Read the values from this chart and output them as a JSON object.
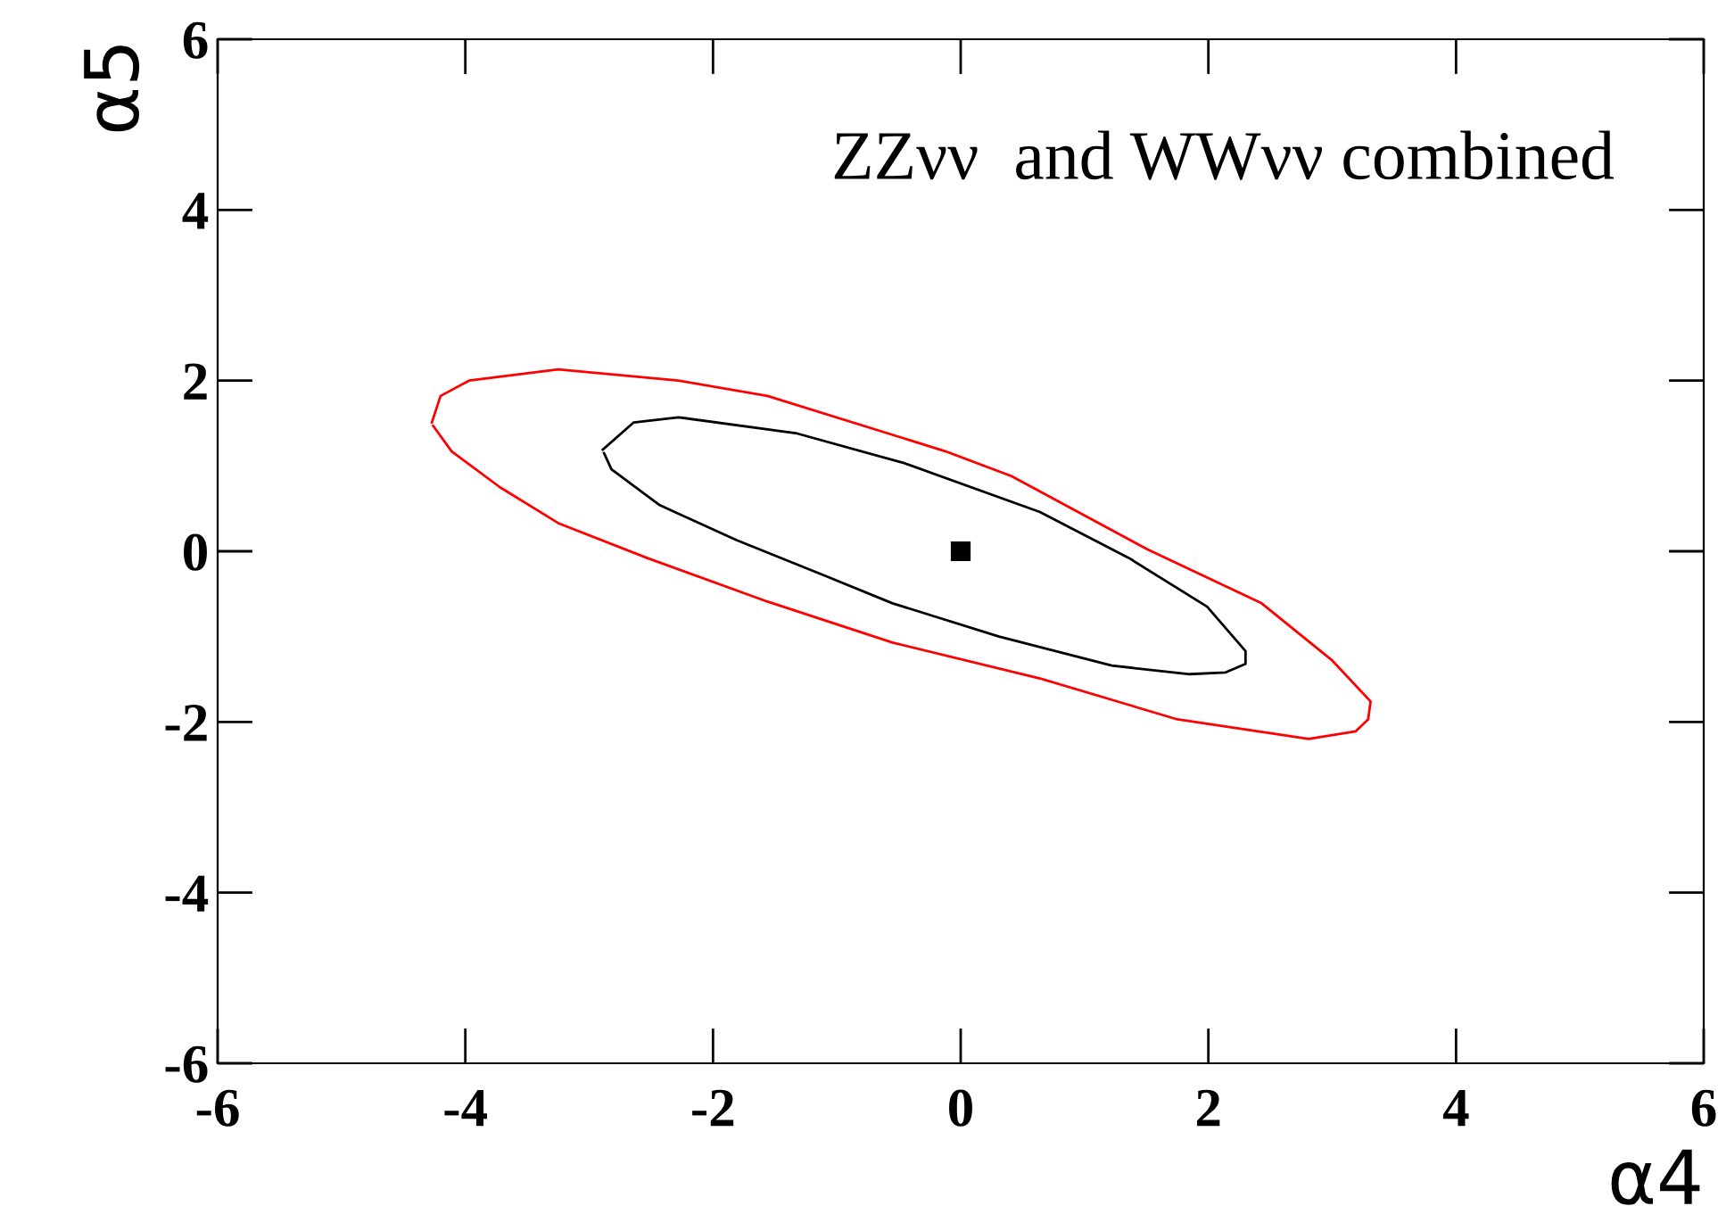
{
  "chart_data": {
    "type": "line",
    "xlabel": "α4",
    "ylabel": "α5",
    "annotations": [
      "ZZνν  and WWνν combined"
    ],
    "xlim": [
      -6,
      6
    ],
    "ylim": [
      -6,
      6
    ],
    "xticks": [
      -6,
      -4,
      -2,
      0,
      2,
      4,
      6
    ],
    "yticks": [
      -6,
      -4,
      -2,
      0,
      2,
      4,
      6
    ],
    "grid": false,
    "legend": false,
    "series": [
      {
        "color": "#ff0000",
        "x": [
          -4.27,
          -4.2,
          -3.97,
          -3.25,
          -2.28,
          -1.56,
          -0.12,
          0.41,
          1.51,
          2.43,
          3.0,
          3.31,
          3.29,
          3.19,
          2.81,
          1.75,
          0.64,
          -0.55,
          -1.56,
          -2.53,
          -3.25,
          -3.72,
          -4.11,
          -4.26
        ],
        "values": [
          1.51,
          1.82,
          2.0,
          2.13,
          2.0,
          1.82,
          1.17,
          0.88,
          0.02,
          -0.61,
          -1.28,
          -1.76,
          -1.97,
          -2.11,
          -2.2,
          -1.97,
          -1.49,
          -1.07,
          -0.59,
          -0.08,
          0.33,
          0.75,
          1.17,
          1.47
        ]
      },
      {
        "color": "#000000",
        "x": [
          -2.89,
          -2.64,
          -2.28,
          -1.32,
          -0.45,
          0.64,
          1.36,
          1.99,
          2.3,
          2.3,
          2.14,
          1.85,
          1.22,
          0.31,
          -0.55,
          -1.09,
          -1.81,
          -2.43,
          -2.82,
          -2.88
        ],
        "values": [
          1.19,
          1.51,
          1.57,
          1.38,
          1.03,
          0.46,
          -0.08,
          -0.65,
          -1.17,
          -1.32,
          -1.42,
          -1.44,
          -1.34,
          -1.0,
          -0.61,
          -0.29,
          0.13,
          0.54,
          0.96,
          1.15
        ]
      },
      {
        "type": "scatter",
        "marker": "square",
        "color": "#000000",
        "x": [
          0
        ],
        "values": [
          0
        ]
      }
    ]
  }
}
